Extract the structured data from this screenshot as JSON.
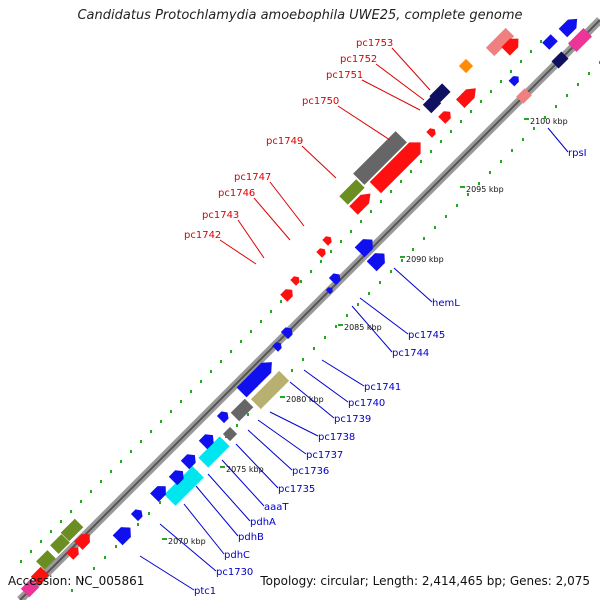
{
  "title": "Candidatus Protochlamydia amoebophila UWE25, complete genome",
  "footer": {
    "accession": "Accession: NC_005861",
    "topology": "Topology: circular; Length: 2,414,465 bp; Genes: 2,075"
  },
  "ticks": [
    "2070 kbp",
    "2075 kbp",
    "2080 kbp",
    "2085 kbp",
    "2090 kbp",
    "2095 kbp",
    "2100 kbp"
  ],
  "upper_labels": [
    "pc1753",
    "pc1752",
    "pc1751",
    "pc1750",
    "pc1749",
    "pc1747",
    "pc1746",
    "pc1743",
    "pc1742"
  ],
  "lower_labels": [
    "rpsI",
    "hemL",
    "pc1745",
    "pc1744",
    "pc1741",
    "pc1740",
    "pc1739",
    "pc1738",
    "pc1737",
    "pc1736",
    "pc1735",
    "aaaT",
    "pdhA",
    "pdhB",
    "pdhC",
    "pc1730",
    "ptc1"
  ],
  "colors": {
    "upper_label": "#dd0000",
    "lower_label": "#0000cc",
    "backbone": "#888888",
    "red_gene": "#ff1010",
    "blue_gene": "#1010ee",
    "navy_gene": "#101060",
    "grey_gene": "#666666",
    "olive_gene": "#6b8e23",
    "khaki_gene": "#b8b070",
    "cyan_gene": "#00e5ee",
    "pink_gene": "#ee3399",
    "salmon_gene": "#f08080",
    "orange_gene": "#ff8c00",
    "dot": "#22aa22"
  }
}
